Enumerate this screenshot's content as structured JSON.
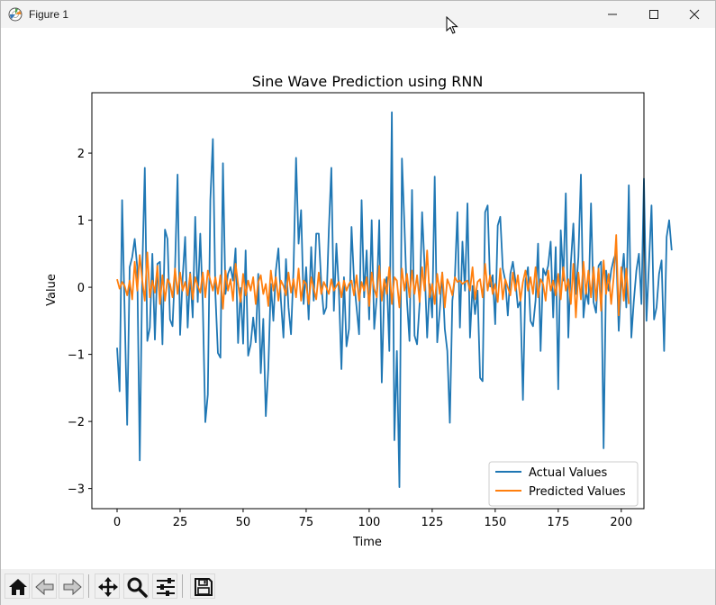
{
  "window": {
    "title": "Figure 1"
  },
  "toolbar": {
    "buttons": [
      "home-icon",
      "back-icon",
      "forward-icon",
      "pan-icon",
      "zoom-icon",
      "configure-icon",
      "save-icon"
    ]
  },
  "colors": {
    "actual": "#1f77b4",
    "predicted": "#ff7f0e",
    "axes": "#000000",
    "toolbar_bg": "#f0f0f0",
    "titlebar_bg": "#f3f3f3"
  },
  "chart_data": {
    "type": "line",
    "title": "Sine Wave Prediction using RNN",
    "xlabel": "Time",
    "ylabel": "Value",
    "xlim": [
      -10,
      209
    ],
    "ylim": [
      -3.3,
      2.9
    ],
    "xticks": [
      0,
      25,
      50,
      75,
      100,
      125,
      150,
      175,
      200
    ],
    "yticks": [
      -3,
      -2,
      -1,
      0,
      1,
      2
    ],
    "xtick_labels": [
      "0",
      "25",
      "50",
      "75",
      "100",
      "125",
      "150",
      "175",
      "200"
    ],
    "ytick_labels": [
      "−3",
      "−2",
      "−1",
      "0",
      "1",
      "2"
    ],
    "grid": false,
    "legend_position": "lower-right",
    "series": [
      {
        "name": "Actual Values",
        "color": "#1f77b4",
        "x_start": 0,
        "values": [
          -0.9,
          -1.55,
          1.3,
          -0.35,
          -2.05,
          0.3,
          0.45,
          0.72,
          0.3,
          -2.58,
          0.25,
          1.78,
          -0.8,
          -0.6,
          0.5,
          -0.78,
          0.35,
          0.38,
          -0.85,
          0.86,
          0.72,
          -0.48,
          -0.58,
          0.3,
          1.68,
          -0.71,
          0.14,
          0.75,
          -0.6,
          0.22,
          -0.45,
          1.05,
          -0.22,
          0.8,
          -0.25,
          -2.01,
          -1.6,
          1.3,
          2.21,
          -0.1,
          -0.98,
          -1.05,
          1.85,
          -0.1,
          0.2,
          0.3,
          0.1,
          0.58,
          -0.83,
          -0.01,
          -0.84,
          0.55,
          -1.02,
          -0.85,
          -0.45,
          -0.82,
          0.2,
          -1.28,
          -0.47,
          -1.92,
          -1.2,
          0.05,
          -0.5,
          0.25,
          0.58,
          -0.2,
          -0.75,
          0.42,
          -0.3,
          -0.7,
          0.28,
          1.93,
          0.65,
          1.15,
          -0.25,
          0.3,
          -0.48,
          0.6,
          -0.2,
          0.8,
          0.8,
          0.05,
          -0.4,
          -0.3,
          0.85,
          1.78,
          -0.35,
          0.65,
          -0.05,
          -1.22,
          0.15,
          -0.88,
          -0.62,
          0.9,
          0.1,
          -0.3,
          -0.7,
          1.3,
          -0.15,
          0.55,
          -0.48,
          1.0,
          -0.62,
          -0.15,
          1.0,
          -1.42,
          0.01,
          0.15,
          -0.95,
          2.61,
          -2.28,
          -0.95,
          -2.98,
          1.92,
          0.92,
          -0.2,
          -0.8,
          1.45,
          -0.72,
          -0.85,
          -0.25,
          1.12,
          0.3,
          -0.75,
          0.05,
          -0.45,
          1.65,
          -0.82,
          -0.35,
          0.22,
          -0.62,
          -0.95,
          -2.02,
          -0.2,
          0.15,
          1.12,
          -0.6,
          0.68,
          -0.05,
          1.25,
          -0.75,
          0.02,
          -0.4,
          -0.05,
          -1.35,
          -1.4,
          1.12,
          1.22,
          0.01,
          0.18,
          -0.55,
          0.92,
          1.05,
          0.28,
          0.1,
          -0.42,
          0.2,
          0.38,
          0.1,
          -0.3,
          -0.2,
          -1.68,
          0.1,
          0.3,
          -0.5,
          -0.58,
          -0.2,
          0.65,
          -0.95,
          0.28,
          0.18,
          0.32,
          0.68,
          -0.45,
          0.6,
          -1.52,
          0.85,
          0.1,
          1.4,
          -0.75,
          0.35,
          0.95,
          -0.1,
          0.45,
          1.68,
          -0.45,
          -0.05,
          -0.25,
          1.25,
          -0.22,
          -0.38,
          0.32,
          0.38,
          -2.4,
          0.25,
          -0.05,
          0.25,
          0.42,
          0.52,
          -0.65,
          0.1,
          0.5,
          -0.3,
          1.52,
          -0.75,
          -0.2,
          0.25,
          0.5,
          -0.25,
          1.62,
          -0.5,
          0.35,
          1.22,
          -0.48,
          -0.3,
          0.2,
          0.4,
          -0.95,
          0.75,
          1.0,
          0.55
        ]
      },
      {
        "name": "Predicted Values",
        "color": "#ff7f0e",
        "x_start": 0,
        "values": [
          0.12,
          -0.02,
          0.08,
          0.02,
          -0.12,
          0.1,
          -0.18,
          0.38,
          -0.05,
          0.48,
          0.1,
          -0.2,
          0.52,
          -0.15,
          0.1,
          -0.08,
          0.32,
          -0.25,
          0.18,
          -0.2,
          0.12,
          0.05,
          -0.15,
          0.28,
          -0.1,
          0.22,
          -0.05,
          0.08,
          -0.12,
          0.2,
          -0.18,
          0.15,
          0.02,
          -0.08,
          0.22,
          -0.15,
          0.25,
          0.1,
          -0.05,
          0.15,
          -0.1,
          0.18,
          -0.32,
          0.25,
          -0.05,
          0.12,
          -0.2,
          0.35,
          0.05,
          -0.22,
          0.2,
          -0.12,
          0.1,
          -0.05,
          0.15,
          -0.25,
          0.08,
          0.18,
          -0.1,
          0.05,
          -0.28,
          0.25,
          -0.05,
          0.15,
          -0.2,
          0.1,
          0.02,
          -0.12,
          0.22,
          -0.08,
          0.12,
          -0.15,
          0.28,
          -0.2,
          0.1,
          0.05,
          -0.25,
          0.15,
          -0.02,
          -0.18,
          0.22,
          -0.1,
          0.08,
          0.0,
          -0.1,
          0.12,
          -0.05,
          0.02,
          0.08,
          -0.15,
          0.1,
          -0.05,
          0.05,
          0.1,
          -0.12,
          0.18,
          -0.2,
          0.08,
          -0.05,
          0.15,
          -0.28,
          0.22,
          -0.02,
          -0.15,
          0.32,
          -0.2,
          0.12,
          -0.1,
          0.3,
          -0.25,
          0.15,
          0.1,
          -0.3,
          0.28,
          -0.05,
          0.2,
          -0.15,
          0.25,
          -0.1,
          0.18,
          -0.22,
          0.3,
          -0.05,
          0.55,
          -0.15,
          0.05,
          -0.25,
          0.2,
          -0.1,
          0.22,
          -0.3,
          0.12,
          0.02,
          -0.12,
          0.15,
          0.08,
          0.1,
          0.05,
          0.08,
          0.1,
          -0.05,
          0.3,
          -0.18,
          0.08,
          0.12,
          -0.15,
          0.35,
          -0.05,
          0.18,
          -0.1,
          0.05,
          -0.22,
          0.28,
          -0.18,
          0.12,
          0.0,
          -0.12,
          0.22,
          -0.05,
          0.18,
          -0.2,
          0.08,
          0.25,
          -0.05,
          0.15,
          -0.1,
          0.3,
          -0.15,
          0.12,
          0.05,
          -0.2,
          0.25,
          -0.05,
          0.1,
          -0.12,
          0.2,
          -0.18,
          0.3,
          -0.05,
          0.12,
          -0.25,
          0.35,
          -0.45,
          0.22,
          -0.18,
          0.38,
          -0.1,
          0.25,
          -0.15,
          0.3,
          -0.2,
          0.28,
          -0.35,
          0.4,
          -0.1,
          0.2,
          -0.25,
          0.15,
          0.78,
          -0.42,
          0.3,
          -0.2,
          0.28,
          -0.25
        ]
      }
    ]
  }
}
